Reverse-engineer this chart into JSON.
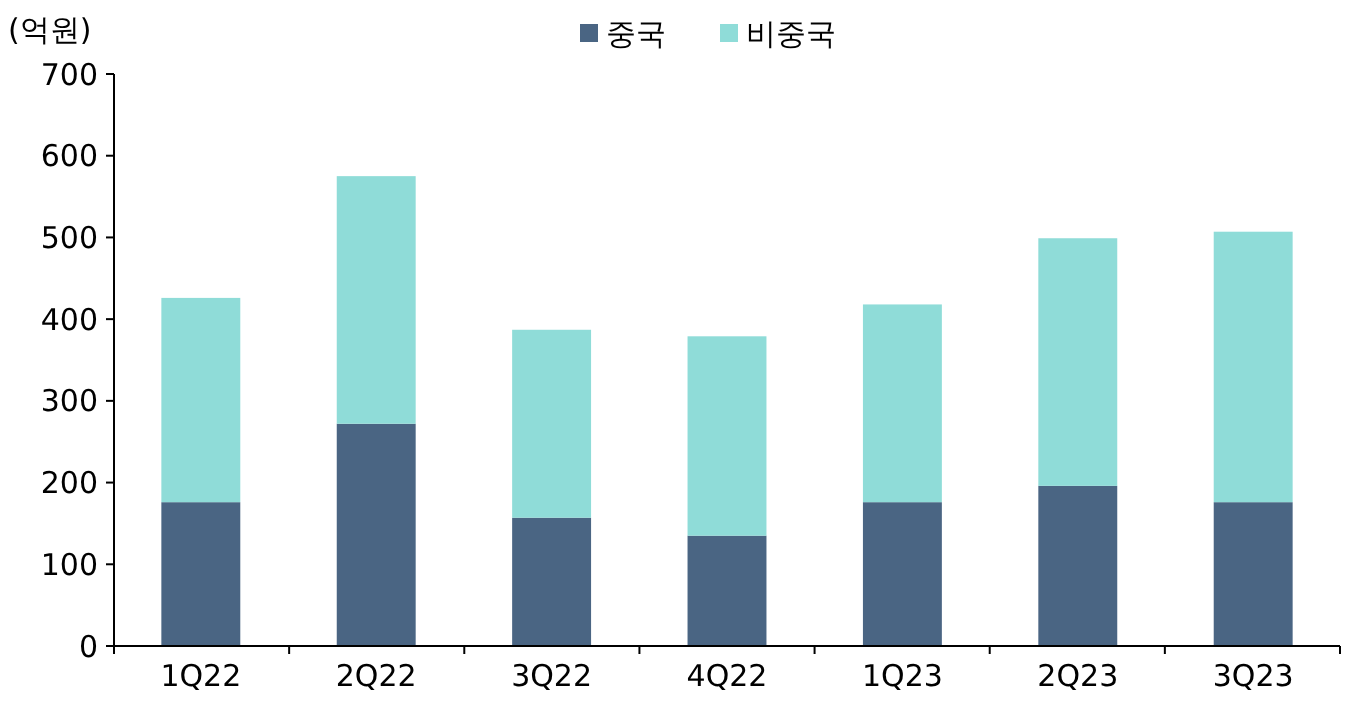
{
  "chart_data": {
    "type": "bar",
    "stacked": true,
    "ylabel": "(억원)",
    "categories": [
      "1Q22",
      "2Q22",
      "3Q22",
      "4Q22",
      "1Q23",
      "2Q23",
      "3Q23"
    ],
    "series": [
      {
        "name": "중국",
        "color": "#4a6583",
        "values": [
          176,
          272,
          157,
          135,
          176,
          196,
          176
        ]
      },
      {
        "name": "비중국",
        "color": "#8fdcd8",
        "values": [
          250,
          303,
          230,
          244,
          242,
          303,
          331
        ]
      }
    ],
    "ylim": [
      0,
      700
    ],
    "yticks": [
      0,
      100,
      200,
      300,
      400,
      500,
      600,
      700
    ],
    "grid": false,
    "legend": "top"
  }
}
